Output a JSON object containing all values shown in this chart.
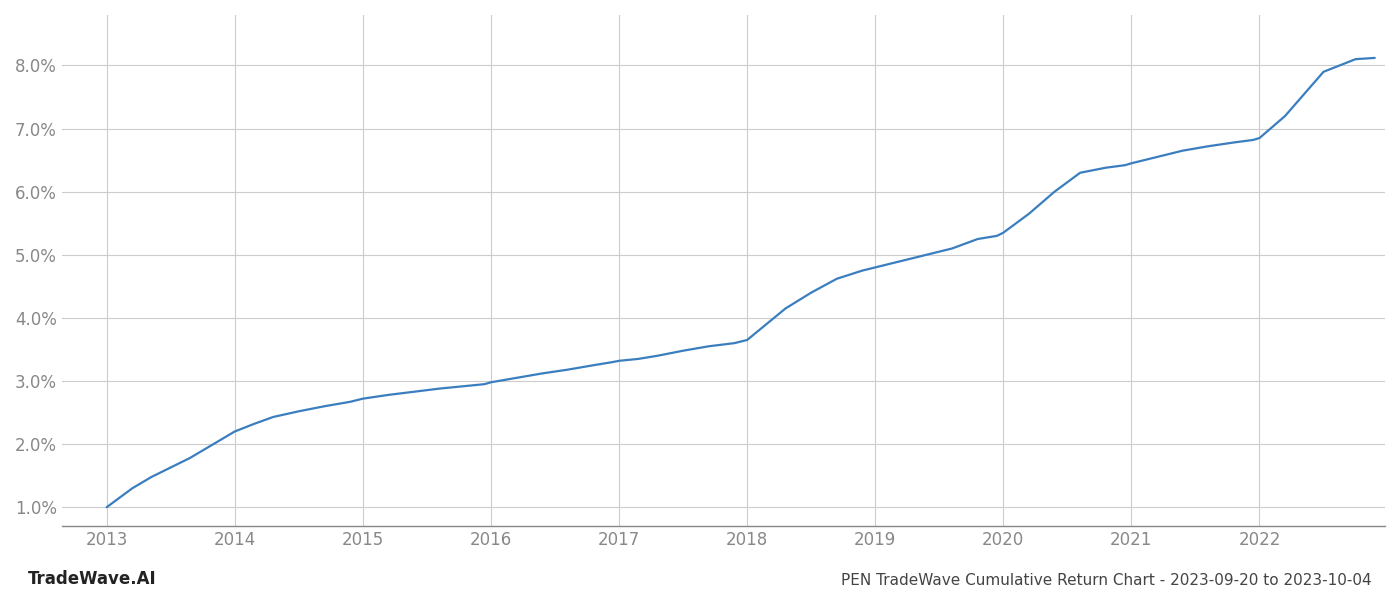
{
  "title": "PEN TradeWave Cumulative Return Chart - 2023-09-20 to 2023-10-04",
  "watermark": "TradeWave.AI",
  "line_color": "#3a7ebf",
  "background_color": "#ffffff",
  "grid_color": "#cccccc",
  "x_values": [
    2013.0,
    2013.1,
    2013.2,
    2013.35,
    2013.5,
    2013.65,
    2013.75,
    2013.9,
    2014.0,
    2014.15,
    2014.3,
    2014.5,
    2014.7,
    2014.9,
    2015.0,
    2015.2,
    2015.4,
    2015.6,
    2015.8,
    2015.95,
    2016.0,
    2016.2,
    2016.4,
    2016.6,
    2016.8,
    2016.95,
    2017.0,
    2017.15,
    2017.3,
    2017.5,
    2017.7,
    2017.9,
    2018.0,
    2018.15,
    2018.3,
    2018.5,
    2018.7,
    2018.9,
    2019.0,
    2019.2,
    2019.4,
    2019.6,
    2019.8,
    2019.95,
    2020.0,
    2020.2,
    2020.4,
    2020.6,
    2020.8,
    2020.95,
    2021.0,
    2021.2,
    2021.4,
    2021.6,
    2021.8,
    2021.95,
    2022.0,
    2022.2,
    2022.5,
    2022.75,
    2022.9
  ],
  "y_values": [
    0.01,
    0.0115,
    0.013,
    0.0148,
    0.0163,
    0.0178,
    0.019,
    0.0208,
    0.022,
    0.0232,
    0.0243,
    0.0252,
    0.026,
    0.0267,
    0.0272,
    0.0278,
    0.0283,
    0.0288,
    0.0292,
    0.0295,
    0.0298,
    0.0305,
    0.0312,
    0.0318,
    0.0325,
    0.033,
    0.0332,
    0.0335,
    0.034,
    0.0348,
    0.0355,
    0.036,
    0.0365,
    0.039,
    0.0415,
    0.044,
    0.0462,
    0.0475,
    0.048,
    0.049,
    0.05,
    0.051,
    0.0525,
    0.053,
    0.0535,
    0.0565,
    0.06,
    0.063,
    0.0638,
    0.0642,
    0.0645,
    0.0655,
    0.0665,
    0.0672,
    0.0678,
    0.0682,
    0.0685,
    0.072,
    0.079,
    0.081,
    0.0812
  ],
  "xlim": [
    2012.65,
    2022.98
  ],
  "ylim": [
    0.007,
    0.088
  ],
  "yticks": [
    0.01,
    0.02,
    0.03,
    0.04,
    0.05,
    0.06,
    0.07,
    0.08
  ],
  "xticks": [
    2013,
    2014,
    2015,
    2016,
    2017,
    2018,
    2019,
    2020,
    2021,
    2022
  ],
  "line_width": 1.6,
  "title_fontsize": 11,
  "tick_fontsize": 12,
  "watermark_fontsize": 12
}
